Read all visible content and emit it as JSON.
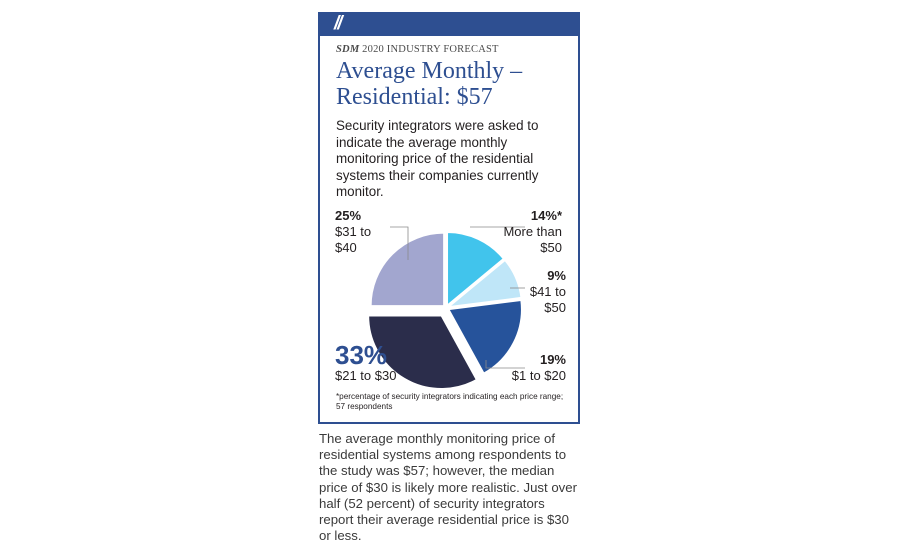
{
  "card": {
    "eyebrow_brand": "SDM",
    "eyebrow_rest": " 2020 INDUSTRY FORECAST",
    "title_line1": "Average Monthly –",
    "title_line2": "Residential: $57",
    "intro": "Security integrators were asked to indicate the average monthly monitoring price of the residential systems their companies currently monitor.",
    "footnote": "*percentage of security integrators indicating each price range; 57 respondents"
  },
  "chart_data": {
    "type": "pie",
    "slices": [
      {
        "pct_label": "14%*",
        "range_label": "More than $50",
        "value": 14,
        "color": "#41c4ec"
      },
      {
        "pct_label": "9%",
        "range_label": "$41 to $50",
        "value": 9,
        "color": "#bfe6f8"
      },
      {
        "pct_label": "19%",
        "range_label": "$1 to $20",
        "value": 19,
        "color": "#26539b"
      },
      {
        "pct_label": "33%",
        "range_label": "$21 to $30",
        "value": 33,
        "color": "#2b2d4b"
      },
      {
        "pct_label": "25%",
        "range_label": "$31 to $40",
        "value": 25,
        "color": "#a2a6cf"
      }
    ],
    "emphasized_slice": "$21 to $30"
  },
  "caption": "The average monthly monitoring price of residential systems among respondents to the study was $57; however, the median price of $30 is likely more realistic. Just over half (52 percent) of security integrators report their average residential price is $30 or less."
}
